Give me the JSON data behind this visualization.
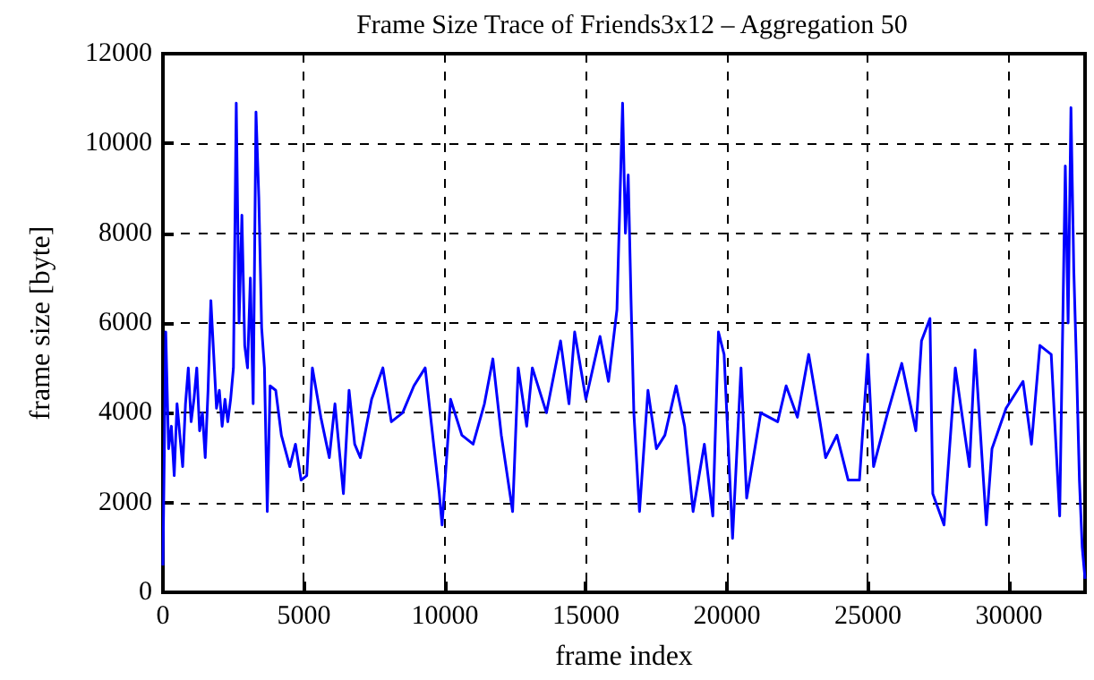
{
  "chart_data": {
    "type": "line",
    "title": "Frame Size Trace of Friends3x12 – Aggregation 50",
    "xlabel": "frame index",
    "ylabel": "frame size [byte]",
    "xlim": [
      0,
      32700
    ],
    "xticks": [
      0,
      5000,
      10000,
      15000,
      20000,
      25000,
      30000
    ],
    "ylim": [
      0,
      12000
    ],
    "yticks": [
      0,
      2000,
      4000,
      6000,
      8000,
      10000,
      12000
    ],
    "grid": true,
    "marker": "none",
    "line_style": "solid",
    "series": [
      {
        "color": "#0000ff",
        "x": [
          0,
          100,
          200,
          300,
          400,
          500,
          600,
          700,
          800,
          900,
          1000,
          1100,
          1200,
          1300,
          1400,
          1500,
          1600,
          1700,
          1800,
          1900,
          2000,
          2100,
          2200,
          2300,
          2400,
          2500,
          2600,
          2700,
          2800,
          2900,
          3000,
          3100,
          3200,
          3300,
          3400,
          3500,
          3600,
          3700,
          3800,
          4000,
          4200,
          4500,
          4700,
          4900,
          5100,
          5300,
          5600,
          5900,
          6100,
          6400,
          6600,
          6800,
          7000,
          7400,
          7800,
          8100,
          8500,
          8900,
          9300,
          9600,
          9800,
          9900,
          10200,
          10600,
          11000,
          11400,
          11700,
          12000,
          12400,
          12600,
          12900,
          13100,
          13600,
          14100,
          14400,
          14600,
          15000,
          15500,
          15800,
          16100,
          16300,
          16400,
          16500,
          16600,
          16700,
          16900,
          17200,
          17500,
          17800,
          18200,
          18500,
          18800,
          19200,
          19500,
          19700,
          19900,
          20200,
          20500,
          20700,
          21200,
          21800,
          22100,
          22500,
          22900,
          23300,
          23500,
          23900,
          24300,
          24700,
          25000,
          25200,
          25700,
          26200,
          26700,
          26900,
          27200,
          27300,
          27700,
          28100,
          28600,
          28800,
          29200,
          29400,
          29900,
          30500,
          30800,
          31100,
          31500,
          31800,
          32000,
          32100,
          32200,
          32300,
          32400,
          32500,
          32600,
          32700
        ],
        "values": [
          600,
          5800,
          3200,
          3700,
          2600,
          4200,
          3500,
          2800,
          4200,
          5000,
          3800,
          4300,
          5000,
          3600,
          4000,
          3000,
          4500,
          6500,
          5300,
          4100,
          4500,
          3700,
          4300,
          3800,
          4300,
          5000,
          10900,
          6000,
          8400,
          5500,
          5000,
          7000,
          4200,
          10700,
          8800,
          5900,
          5000,
          1800,
          4600,
          4500,
          3500,
          2800,
          3300,
          2500,
          2600,
          5000,
          3900,
          3000,
          4200,
          2200,
          4500,
          3300,
          3000,
          4300,
          5000,
          3800,
          4000,
          4600,
          5000,
          3300,
          2200,
          1500,
          4300,
          3500,
          3300,
          4200,
          5200,
          3500,
          1800,
          5000,
          3700,
          5000,
          4000,
          5600,
          4200,
          5800,
          4300,
          5700,
          4700,
          6300,
          10900,
          8000,
          9300,
          6500,
          4000,
          1800,
          4500,
          3200,
          3500,
          4600,
          3700,
          1800,
          3300,
          1700,
          5800,
          5300,
          1200,
          5000,
          2100,
          4000,
          3800,
          4600,
          3900,
          5300,
          3800,
          3000,
          3500,
          2500,
          2500,
          5300,
          2800,
          4000,
          5100,
          3600,
          5600,
          6100,
          2200,
          1500,
          5000,
          2800,
          5400,
          1500,
          3200,
          4100,
          4700,
          3300,
          5500,
          5300,
          1700,
          9500,
          6000,
          10800,
          7200,
          5000,
          2500,
          1000,
          300
        ]
      }
    ]
  }
}
